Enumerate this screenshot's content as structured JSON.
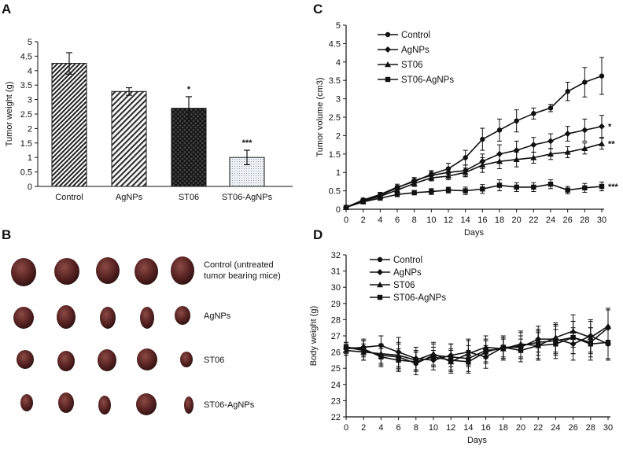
{
  "chart_data": [
    {
      "panel": "A",
      "type": "bar",
      "ylabel": "Tumor weight (g)",
      "ylim": [
        0,
        5
      ],
      "yticks": [
        "0",
        "0.5",
        "1",
        "1.5",
        "2",
        "2.5",
        "3",
        "3.5",
        "4",
        "4.5",
        "5"
      ],
      "categories": [
        "Control",
        "AgNPs",
        "ST06",
        "ST06-AgNPs"
      ],
      "values": [
        4.25,
        3.28,
        2.7,
        1.0
      ],
      "errors": [
        0.37,
        0.13,
        0.4,
        0.25
      ],
      "significance": [
        "",
        "",
        "*",
        "***"
      ],
      "fills": [
        "hatch-diag-fine",
        "hatch-diag",
        "crosshatch",
        "dots"
      ]
    },
    {
      "panel": "C",
      "type": "line",
      "xlabel": "Days",
      "ylabel": "Tumor volume (cm3)",
      "ylim": [
        0,
        5
      ],
      "yticks": [
        "0",
        "0.5",
        "1",
        "1.5",
        "2",
        "2.5",
        "3",
        "3.5",
        "4",
        "4.5",
        "5"
      ],
      "x": [
        0,
        2,
        4,
        6,
        8,
        10,
        12,
        14,
        16,
        18,
        20,
        22,
        24,
        26,
        28,
        30
      ],
      "series": [
        {
          "name": "Control",
          "marker": "circle",
          "values": [
            0.05,
            0.25,
            0.4,
            0.6,
            0.75,
            0.95,
            1.1,
            1.4,
            1.9,
            2.15,
            2.4,
            2.6,
            2.75,
            3.2,
            3.45,
            3.62
          ],
          "errors": [
            0.02,
            0.05,
            0.06,
            0.08,
            0.1,
            0.1,
            0.15,
            0.2,
            0.3,
            0.3,
            0.3,
            0.15,
            0.1,
            0.25,
            0.4,
            0.5
          ]
        },
        {
          "name": "AgNPs",
          "marker": "diamond",
          "values": [
            0.05,
            0.25,
            0.38,
            0.58,
            0.78,
            0.92,
            1.0,
            1.05,
            1.3,
            1.5,
            1.6,
            1.75,
            1.85,
            2.05,
            2.15,
            2.25
          ],
          "errors": [
            0.02,
            0.04,
            0.05,
            0.06,
            0.08,
            0.1,
            0.12,
            0.15,
            0.2,
            0.25,
            0.25,
            0.2,
            0.2,
            0.2,
            0.3,
            0.3
          ]
        },
        {
          "name": "ST06",
          "marker": "triangle",
          "values": [
            0.05,
            0.22,
            0.35,
            0.52,
            0.7,
            0.85,
            0.9,
            1.0,
            1.2,
            1.3,
            1.35,
            1.4,
            1.5,
            1.55,
            1.65,
            1.78
          ],
          "errors": [
            0.02,
            0.04,
            0.05,
            0.06,
            0.08,
            0.08,
            0.1,
            0.12,
            0.2,
            0.2,
            0.2,
            0.15,
            0.15,
            0.15,
            0.15,
            0.15
          ]
        },
        {
          "name": "ST06-AgNPs",
          "marker": "square",
          "values": [
            0.05,
            0.2,
            0.3,
            0.4,
            0.45,
            0.48,
            0.52,
            0.5,
            0.55,
            0.65,
            0.6,
            0.6,
            0.68,
            0.52,
            0.58,
            0.62
          ],
          "errors": [
            0.02,
            0.03,
            0.05,
            0.06,
            0.06,
            0.08,
            0.08,
            0.1,
            0.12,
            0.15,
            0.12,
            0.12,
            0.12,
            0.1,
            0.12,
            0.12
          ]
        }
      ],
      "significance": [
        "",
        "*",
        "**",
        "***"
      ]
    },
    {
      "panel": "D",
      "type": "line",
      "xlabel": "Days",
      "ylabel": "Body weight (g)",
      "ylim": [
        22,
        32
      ],
      "yticks": [
        "22",
        "23",
        "24",
        "25",
        "26",
        "27",
        "28",
        "29",
        "30",
        "31",
        "32"
      ],
      "x": [
        0,
        2,
        4,
        6,
        8,
        10,
        12,
        14,
        16,
        18,
        20,
        22,
        24,
        26,
        28,
        30
      ],
      "series": [
        {
          "name": "Control",
          "marker": "circle",
          "values": [
            26.3,
            26.1,
            25.8,
            25.7,
            25.3,
            25.8,
            25.7,
            25.6,
            26.1,
            26.2,
            26.4,
            26.6,
            26.7,
            26.9,
            26.6,
            27.5
          ],
          "errors": [
            0.3,
            0.6,
            0.7,
            0.8,
            0.7,
            0.7,
            0.8,
            0.8,
            0.7,
            0.6,
            0.8,
            0.8,
            0.9,
            1.0,
            0.9,
            1.1
          ]
        },
        {
          "name": "AgNPs",
          "marker": "diamond",
          "values": [
            26.2,
            26.3,
            26.4,
            26.0,
            25.6,
            25.5,
            25.8,
            26.0,
            25.7,
            26.3,
            26.3,
            26.8,
            26.8,
            26.5,
            27.0,
            26.5
          ],
          "errors": [
            0.3,
            0.5,
            0.6,
            0.9,
            0.7,
            0.6,
            0.7,
            0.8,
            0.7,
            0.6,
            0.7,
            0.8,
            0.9,
            1.0,
            1.0,
            1.0
          ]
        },
        {
          "name": "ST06",
          "marker": "triangle",
          "values": [
            26.1,
            26.0,
            25.9,
            25.8,
            25.5,
            25.9,
            25.4,
            25.9,
            26.3,
            26.2,
            26.5,
            26.4,
            26.9,
            27.3,
            26.9,
            27.6
          ],
          "errors": [
            0.3,
            0.5,
            0.6,
            0.8,
            0.6,
            0.7,
            0.7,
            0.8,
            0.7,
            0.7,
            0.8,
            0.9,
            0.9,
            1.0,
            1.0,
            1.1
          ]
        },
        {
          "name": "ST06-AgNPs",
          "marker": "square",
          "values": [
            26.3,
            26.2,
            25.7,
            25.5,
            25.4,
            25.7,
            25.5,
            25.4,
            26.0,
            26.3,
            26.1,
            26.4,
            26.5,
            26.9,
            26.5,
            26.6
          ],
          "errors": [
            0.3,
            0.5,
            0.5,
            0.7,
            0.6,
            0.6,
            0.7,
            0.7,
            0.7,
            0.7,
            0.7,
            0.8,
            0.9,
            1.0,
            1.0,
            1.0
          ]
        }
      ]
    }
  ],
  "panels": {
    "a": "A",
    "b": "B",
    "c": "C",
    "d": "D"
  },
  "panel_b": {
    "rows": [
      {
        "label_line1": "Control (untreated",
        "label_line2": "tumor bearing mice)"
      },
      {
        "label_line1": "AgNPs",
        "label_line2": ""
      },
      {
        "label_line1": "ST06",
        "label_line2": ""
      },
      {
        "label_line1": "ST06-AgNPs",
        "label_line2": ""
      }
    ]
  },
  "colors": {
    "ink": "#111111",
    "tumor_dark": "#3a1616",
    "tumor_mid": "#6b2c2a",
    "tumor_light": "#8c4a44"
  }
}
